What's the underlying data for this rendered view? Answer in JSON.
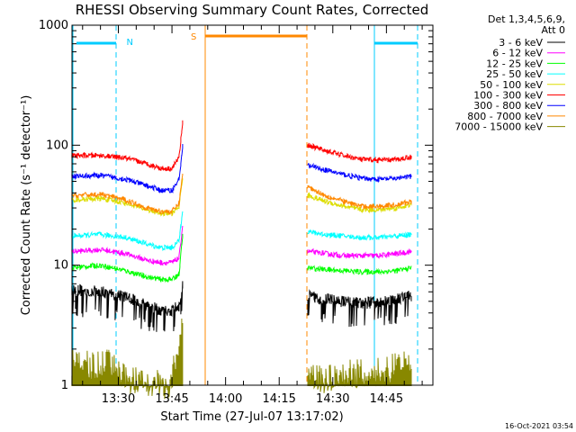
{
  "chart_data": {
    "type": "line",
    "title": "RHESSI Observing Summary Count Rates, Corrected",
    "xlabel": "Start Time (27-Jul-07 13:17:02)",
    "ylabel": "Corrected Count Rate (s⁻¹ detector⁻¹)",
    "yscale": "log",
    "ylim": [
      1,
      1000
    ],
    "xlim": [
      "13:17:02",
      "14:58:00"
    ],
    "x_ticks": [
      "13:30",
      "13:45",
      "14:00",
      "14:15",
      "14:30",
      "14:45"
    ],
    "y_ticks": [
      "1",
      "10",
      "100",
      "1000"
    ],
    "legend_header": [
      "Det 1,3,4,5,6,9,",
      "Att 0"
    ],
    "legend_placement": "right",
    "series": [
      {
        "name": "3 - 6 keV",
        "color": "#000000",
        "segments": [
          {
            "x": [
              "13:17",
              "13:25",
              "13:32",
              "13:38",
              "13:42",
              "13:45",
              "13:47",
              "13:48"
            ],
            "y": [
              6.2,
              6.0,
              5.5,
              4.6,
              4.2,
              4.2,
              4.6,
              7.0
            ]
          },
          {
            "x": [
              "14:23",
              "14:28",
              "14:33",
              "14:38",
              "14:43",
              "14:48",
              "14:52"
            ],
            "y": [
              5.5,
              5.2,
              5.0,
              4.8,
              5.0,
              5.3,
              5.6
            ]
          }
        ]
      },
      {
        "name": "6 - 12 keV",
        "color": "#ff00ff",
        "segments": [
          {
            "x": [
              "13:17",
              "13:25",
              "13:32",
              "13:38",
              "13:42",
              "13:45",
              "13:47",
              "13:48"
            ],
            "y": [
              13,
              13.5,
              12.5,
              11,
              10.5,
              10.5,
              11.5,
              22
            ]
          },
          {
            "x": [
              "14:23",
              "14:28",
              "14:33",
              "14:38",
              "14:43",
              "14:48",
              "14:52"
            ],
            "y": [
              13,
              12.5,
              12,
              12,
              12,
              12.5,
              13
            ]
          }
        ]
      },
      {
        "name": "12 - 25 keV",
        "color": "#00ff00",
        "segments": [
          {
            "x": [
              "13:17",
              "13:25",
              "13:32",
              "13:38",
              "13:42",
              "13:45",
              "13:47",
              "13:48"
            ],
            "y": [
              9.5,
              10,
              9.0,
              8.0,
              7.6,
              7.6,
              8.5,
              18
            ]
          },
          {
            "x": [
              "14:23",
              "14:28",
              "14:33",
              "14:38",
              "14:43",
              "14:48",
              "14:52"
            ],
            "y": [
              9.5,
              9.2,
              9.0,
              8.8,
              8.8,
              9.0,
              9.5
            ]
          }
        ]
      },
      {
        "name": "25 - 50 keV",
        "color": "#00ffff",
        "segments": [
          {
            "x": [
              "13:17",
              "13:25",
              "13:32",
              "13:38",
              "13:42",
              "13:45",
              "13:47",
              "13:48"
            ],
            "y": [
              17.5,
              18,
              17,
              15,
              14,
              14,
              16,
              30
            ]
          },
          {
            "x": [
              "14:23",
              "14:28",
              "14:33",
              "14:38",
              "14:43",
              "14:48",
              "14:52"
            ],
            "y": [
              19,
              18,
              17.5,
              17,
              17,
              17.5,
              18
            ]
          }
        ]
      },
      {
        "name": "50 - 100 keV",
        "color": "#dddd00",
        "segments": [
          {
            "x": [
              "13:17",
              "13:25",
              "13:32",
              "13:38",
              "13:42",
              "13:45",
              "13:47",
              "13:48"
            ],
            "y": [
              35,
              36,
              33,
              29,
              27,
              27,
              31,
              55
            ]
          },
          {
            "x": [
              "14:23",
              "14:28",
              "14:33",
              "14:38",
              "14:43",
              "14:48",
              "14:52"
            ],
            "y": [
              38,
              34,
              31,
              29,
              29,
              30,
              32
            ]
          }
        ]
      },
      {
        "name": "100 - 300 keV",
        "color": "#ff0000",
        "segments": [
          {
            "x": [
              "13:17",
              "13:25",
              "13:32",
              "13:38",
              "13:42",
              "13:45",
              "13:47",
              "13:48"
            ],
            "y": [
              82,
              82,
              78,
              70,
              64,
              64,
              80,
              160
            ]
          },
          {
            "x": [
              "14:23",
              "14:28",
              "14:33",
              "14:38",
              "14:43",
              "14:48",
              "14:52"
            ],
            "y": [
              100,
              90,
              82,
              76,
              75,
              76,
              80
            ]
          }
        ]
      },
      {
        "name": "300 - 800 keV",
        "color": "#0000ff",
        "segments": [
          {
            "x": [
              "13:17",
              "13:25",
              "13:32",
              "13:38",
              "13:42",
              "13:45",
              "13:47",
              "13:48"
            ],
            "y": [
              55,
              56,
              52,
              46,
              42,
              42,
              52,
              100
            ]
          },
          {
            "x": [
              "14:23",
              "14:28",
              "14:33",
              "14:38",
              "14:43",
              "14:48",
              "14:52"
            ],
            "y": [
              68,
              62,
              57,
              53,
              52,
              53,
              55
            ]
          }
        ]
      },
      {
        "name": "800 - 7000 keV",
        "color": "#ff8800",
        "segments": [
          {
            "x": [
              "13:17",
              "13:25",
              "13:32",
              "13:38",
              "13:42",
              "13:45",
              "13:47",
              "13:48"
            ],
            "y": [
              38,
              39,
              35,
              30,
              28,
              28,
              33,
              60
            ]
          },
          {
            "x": [
              "14:23",
              "14:28",
              "14:33",
              "14:38",
              "14:43",
              "14:48",
              "14:52"
            ],
            "y": [
              45,
              38,
              34,
              31,
              31,
              32,
              34
            ]
          }
        ]
      },
      {
        "name": "7000 - 15000 keV",
        "color": "#888800",
        "segments": [
          {
            "x": [
              "13:17",
              "13:30",
              "13:33",
              "13:44",
              "13:46",
              "13:47",
              "13:48"
            ],
            "y": [
              1.5,
              1.5,
              1.1,
              1.0,
              1.6,
              2.4,
              4.0
            ]
          },
          {
            "x": [
              "14:23",
              "14:25",
              "14:52"
            ],
            "y": [
              1.5,
              1.1,
              1.5
            ]
          }
        ]
      }
    ],
    "annotations": [
      {
        "text": "N",
        "color": "#00ccff",
        "x": "13:30"
      },
      {
        "text": "S",
        "color": "#ff8800",
        "x": "13:50"
      }
    ],
    "timestamp": "16-Oct-2021 03:54"
  }
}
